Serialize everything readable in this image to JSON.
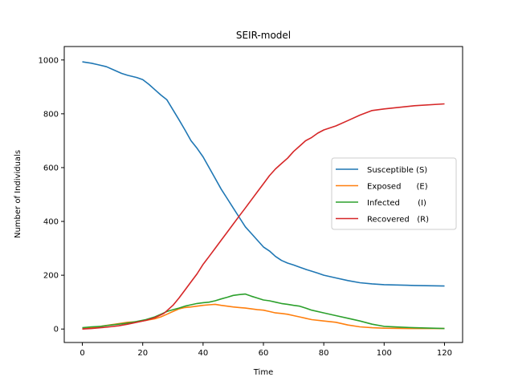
{
  "chart_data": {
    "type": "line",
    "title": "SEIR-model",
    "xlabel": "Time",
    "ylabel": "Number of Individuals",
    "xlim": [
      -6,
      126
    ],
    "ylim": [
      -50,
      1050
    ],
    "xticks": [
      0,
      20,
      40,
      60,
      80,
      100,
      120
    ],
    "yticks": [
      0,
      200,
      400,
      600,
      800,
      1000
    ],
    "grid": false,
    "legend_position": "center-right",
    "series": [
      {
        "name": "Susceptible (S)",
        "color": "#1f77b4",
        "x": [
          0,
          3,
          5,
          8,
          10,
          13,
          15,
          18,
          20,
          22,
          24,
          26,
          28,
          30,
          32,
          34,
          36,
          38,
          40,
          42,
          44,
          46,
          48,
          50,
          52,
          54,
          56,
          58,
          60,
          62,
          64,
          66,
          68,
          70,
          72,
          74,
          76,
          78,
          80,
          84,
          88,
          92,
          96,
          100,
          110,
          120
        ],
        "y": [
          993,
          988,
          983,
          975,
          965,
          950,
          943,
          935,
          927,
          910,
          890,
          870,
          852,
          815,
          778,
          740,
          700,
          672,
          640,
          600,
          560,
          520,
          485,
          450,
          415,
          380,
          355,
          330,
          305,
          290,
          270,
          255,
          245,
          238,
          230,
          222,
          215,
          208,
          200,
          190,
          180,
          172,
          168,
          165,
          162,
          160
        ]
      },
      {
        "name": "Exposed      (E)",
        "color": "#ff7f0e",
        "x": [
          0,
          3,
          6,
          9,
          12,
          15,
          18,
          21,
          24,
          26,
          28,
          30,
          32,
          34,
          36,
          38,
          40,
          42,
          44,
          46,
          48,
          50,
          52,
          54,
          56,
          58,
          60,
          62,
          64,
          66,
          68,
          70,
          72,
          74,
          76,
          80,
          84,
          88,
          92,
          96,
          100,
          110,
          120
        ],
        "y": [
          0,
          5,
          10,
          15,
          20,
          25,
          27,
          32,
          38,
          45,
          55,
          65,
          75,
          80,
          82,
          85,
          88,
          90,
          92,
          88,
          85,
          82,
          80,
          78,
          75,
          72,
          70,
          65,
          60,
          58,
          55,
          50,
          45,
          40,
          35,
          30,
          25,
          15,
          8,
          5,
          3,
          2,
          2
        ]
      },
      {
        "name": "Infected       (I)",
        "color": "#2ca02c",
        "x": [
          0,
          3,
          6,
          9,
          12,
          15,
          18,
          21,
          24,
          26,
          28,
          30,
          32,
          34,
          36,
          38,
          40,
          42,
          44,
          46,
          48,
          50,
          52,
          54,
          56,
          58,
          60,
          62,
          64,
          66,
          68,
          70,
          72,
          74,
          76,
          80,
          84,
          88,
          92,
          96,
          100,
          110,
          120
        ],
        "y": [
          5,
          8,
          10,
          14,
          18,
          22,
          28,
          35,
          45,
          55,
          65,
          72,
          78,
          85,
          90,
          95,
          98,
          100,
          105,
          112,
          118,
          125,
          128,
          130,
          122,
          115,
          108,
          105,
          100,
          95,
          92,
          88,
          85,
          78,
          70,
          60,
          50,
          40,
          30,
          18,
          10,
          5,
          2
        ]
      },
      {
        "name": "Recovered   (R)",
        "color": "#d62728",
        "x": [
          0,
          3,
          6,
          9,
          12,
          15,
          18,
          21,
          24,
          27,
          30,
          32,
          34,
          36,
          38,
          40,
          42,
          44,
          46,
          48,
          50,
          52,
          54,
          56,
          58,
          60,
          62,
          64,
          66,
          68,
          70,
          72,
          74,
          76,
          78,
          80,
          84,
          88,
          92,
          96,
          100,
          110,
          120
        ],
        "y": [
          0,
          2,
          5,
          8,
          12,
          18,
          25,
          32,
          42,
          58,
          88,
          115,
          145,
          175,
          205,
          240,
          270,
          300,
          330,
          360,
          390,
          420,
          450,
          480,
          510,
          540,
          570,
          595,
          615,
          635,
          660,
          680,
          700,
          712,
          728,
          740,
          755,
          775,
          795,
          812,
          818,
          830,
          837
        ]
      }
    ]
  }
}
